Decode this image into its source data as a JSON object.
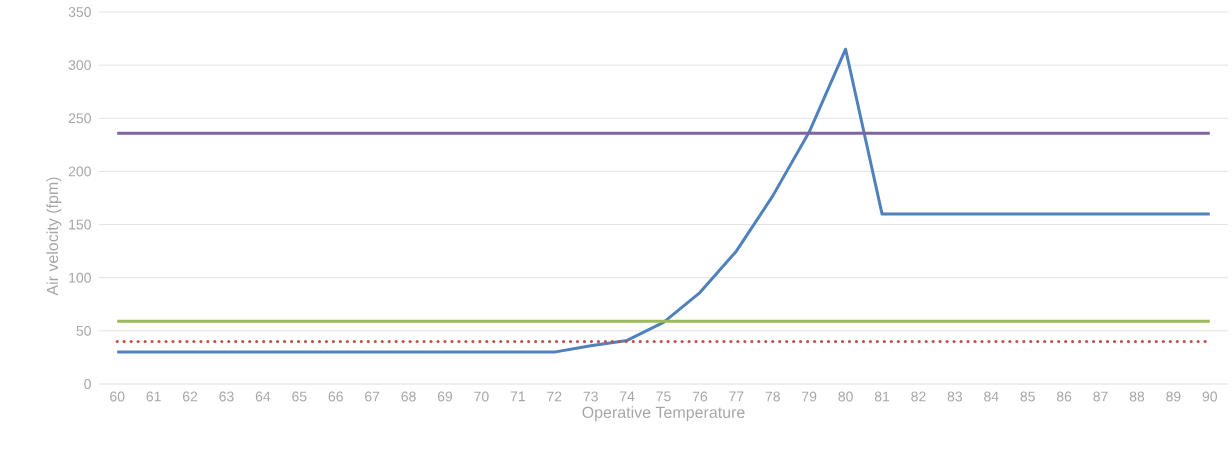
{
  "chart_data": {
    "type": "line",
    "xlabel": "Operative Temperature",
    "ylabel": "Air velocity (fpm)",
    "categories": [
      "60",
      "61",
      "62",
      "63",
      "64",
      "65",
      "66",
      "67",
      "68",
      "69",
      "70",
      "71",
      "72",
      "73",
      "74",
      "75",
      "76",
      "77",
      "78",
      "79",
      "80",
      "81",
      "82",
      "83",
      "84",
      "85",
      "86",
      "87",
      "88",
      "89",
      "90"
    ],
    "series": [
      {
        "color": "#4f81bd",
        "values": [
          30,
          30,
          30,
          30,
          30,
          30,
          30,
          30,
          30,
          30,
          30,
          30,
          30,
          36,
          41,
          58,
          86,
          125,
          177,
          237,
          315,
          160,
          160,
          160,
          160,
          160,
          160,
          160,
          160,
          160,
          160
        ]
      },
      {
        "color": "#8064a2",
        "values": [
          236,
          236,
          236,
          236,
          236,
          236,
          236,
          236,
          236,
          236,
          236,
          236,
          236,
          236,
          236,
          236,
          236,
          236,
          236,
          236,
          236,
          236,
          236,
          236,
          236,
          236,
          236,
          236,
          236,
          236,
          236
        ]
      },
      {
        "color": "#9bbb59",
        "values": [
          59,
          59,
          59,
          59,
          59,
          59,
          59,
          59,
          59,
          59,
          59,
          59,
          59,
          59,
          59,
          59,
          59,
          59,
          59,
          59,
          59,
          59,
          59,
          59,
          59,
          59,
          59,
          59,
          59,
          59,
          59
        ]
      },
      {
        "color": "#c0504d",
        "line_style": "dotted",
        "values": [
          40,
          40,
          40,
          40,
          40,
          40,
          40,
          40,
          40,
          40,
          40,
          40,
          40,
          40,
          40,
          40,
          40,
          40,
          40,
          40,
          40,
          40,
          40,
          40,
          40,
          40,
          40,
          40,
          40,
          40,
          40
        ]
      }
    ],
    "ylim": [
      0,
      350
    ],
    "yticks": [
      0,
      50,
      100,
      150,
      200,
      250,
      300,
      350
    ],
    "grid": "y",
    "marker": "none"
  }
}
